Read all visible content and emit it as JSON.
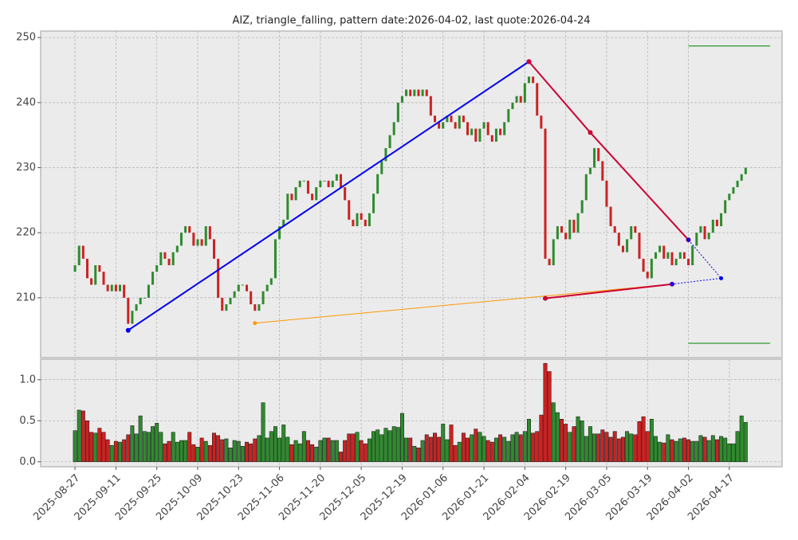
{
  "chart_data": [
    {
      "type": "candlestick",
      "title": "AIZ, triangle_falling, pattern date:2026-04-02, last quote:2026-04-24",
      "up_color": "#2e8b2e",
      "down_color": "#cc2222",
      "grid": true,
      "xlim": [
        -8.4,
        172.9
      ],
      "xticks": [
        0,
        10,
        20,
        30,
        40,
        50,
        60,
        70,
        80,
        90,
        100,
        110,
        120,
        130,
        140,
        150
      ],
      "ylim": [
        200.8,
        251
      ],
      "yticks": [
        210,
        220,
        230,
        240,
        250
      ],
      "open": [
        214,
        215,
        218,
        216,
        213,
        212,
        215,
        214,
        212,
        211,
        212,
        211,
        212,
        210,
        206,
        208,
        209,
        210,
        210,
        212,
        214,
        215,
        217,
        216,
        215,
        217,
        218,
        220,
        221,
        220,
        218,
        219,
        218,
        221,
        219,
        216,
        210,
        208,
        209,
        210,
        211,
        212,
        212,
        211,
        209,
        208,
        209,
        211,
        212,
        213,
        219,
        221,
        222,
        226,
        225,
        227,
        228,
        228,
        226,
        225,
        227,
        228,
        228,
        227,
        228,
        229,
        227,
        225,
        222,
        221,
        223,
        222,
        221,
        223,
        226,
        229,
        231,
        233,
        235,
        237,
        240,
        241,
        242,
        241,
        242,
        241,
        242,
        241,
        238,
        237,
        236,
        237,
        238,
        237,
        236,
        238,
        237,
        235,
        236,
        234,
        236,
        237,
        235,
        234,
        236,
        235,
        237,
        239,
        240,
        241,
        240,
        243,
        244,
        243,
        238,
        236,
        216,
        215,
        219,
        221,
        220,
        219,
        222,
        220,
        223,
        225,
        229,
        230,
        233,
        231,
        228,
        224,
        221,
        220,
        218,
        217,
        219,
        221,
        220,
        216,
        214,
        213,
        216,
        217,
        218,
        216,
        217,
        215,
        216,
        217,
        216,
        215,
        218,
        220,
        221,
        219,
        220,
        222,
        221,
        223,
        225,
        226,
        227,
        228,
        229
      ],
      "close": [
        215,
        218,
        216,
        213,
        212,
        215,
        214,
        212,
        211,
        212,
        211,
        212,
        210,
        206,
        208,
        209,
        210,
        210,
        212,
        214,
        215,
        217,
        216,
        215,
        217,
        218,
        220,
        221,
        220,
        218,
        219,
        218,
        221,
        219,
        216,
        210,
        208,
        209,
        210,
        211,
        212,
        212,
        211,
        209,
        208,
        209,
        211,
        212,
        213,
        219,
        221,
        222,
        226,
        225,
        227,
        228,
        228,
        226,
        225,
        227,
        228,
        228,
        227,
        228,
        229,
        227,
        225,
        222,
        221,
        223,
        222,
        221,
        223,
        226,
        229,
        231,
        233,
        235,
        237,
        240,
        241,
        242,
        241,
        242,
        241,
        242,
        241,
        238,
        237,
        236,
        237,
        238,
        237,
        236,
        238,
        237,
        235,
        236,
        234,
        236,
        237,
        235,
        234,
        236,
        235,
        237,
        239,
        240,
        241,
        240,
        243,
        244,
        243,
        238,
        236,
        216,
        215,
        219,
        221,
        220,
        219,
        222,
        220,
        223,
        225,
        229,
        230,
        233,
        231,
        228,
        224,
        221,
        220,
        218,
        217,
        219,
        221,
        220,
        216,
        214,
        213,
        216,
        217,
        218,
        216,
        217,
        215,
        216,
        217,
        216,
        215,
        218,
        220,
        221,
        219,
        220,
        222,
        221,
        223,
        225,
        226,
        227,
        228,
        229,
        230
      ],
      "overlays": [
        {
          "color": "#ff9900",
          "style": "solid",
          "width": 1,
          "markers": true,
          "x": [
            44,
            146
          ],
          "y": [
            206.1,
            212.1
          ]
        },
        {
          "color": "#0000ee",
          "style": "solid",
          "width": 2,
          "markers": true,
          "x": [
            13,
            111
          ],
          "y": [
            205,
            246.3
          ]
        },
        {
          "color": "#cc0033",
          "style": "solid",
          "width": 2,
          "markers": true,
          "x": [
            111,
            126,
            150
          ],
          "y": [
            246.3,
            235.4,
            218.9
          ]
        },
        {
          "color": "#cc0033",
          "style": "solid",
          "width": 2,
          "markers": true,
          "x": [
            115,
            146
          ],
          "y": [
            209.9,
            212.1
          ]
        },
        {
          "color": "#0000ee",
          "style": "dotted",
          "width": 1,
          "markers": true,
          "x": [
            150,
            158,
            146
          ],
          "y": [
            218.9,
            213,
            212.1
          ]
        },
        {
          "color": "#008000",
          "style": "solid",
          "width": 1,
          "markers": false,
          "x": [
            150,
            170
          ],
          "y": [
            248.7,
            248.7
          ]
        },
        {
          "color": "#008000",
          "style": "solid",
          "width": 1,
          "markers": false,
          "x": [
            150,
            170
          ],
          "y": [
            203,
            203
          ]
        }
      ]
    },
    {
      "type": "bar",
      "grid": true,
      "xlim": [
        -8.4,
        172.9
      ],
      "xticks": [
        {
          "value": 0,
          "label": "2025-08-27"
        },
        {
          "value": 10,
          "label": "2025-09-11"
        },
        {
          "value": 20,
          "label": "2025-09-25"
        },
        {
          "value": 30,
          "label": "2025-10-09"
        },
        {
          "value": 40,
          "label": "2025-10-23"
        },
        {
          "value": 50,
          "label": "2025-11-06"
        },
        {
          "value": 60,
          "label": "2025-11-20"
        },
        {
          "value": 70,
          "label": "2025-12-05"
        },
        {
          "value": 80,
          "label": "2025-12-19"
        },
        {
          "value": 90,
          "label": "2026-01-06"
        },
        {
          "value": 100,
          "label": "2026-01-21"
        },
        {
          "value": 110,
          "label": "2026-02-04"
        },
        {
          "value": 120,
          "label": "2026-02-19"
        },
        {
          "value": 130,
          "label": "2026-03-05"
        },
        {
          "value": 140,
          "label": "2026-03-19"
        },
        {
          "value": 150,
          "label": "2026-04-02"
        },
        {
          "value": 160,
          "label": "2026-04-17"
        }
      ],
      "ylim": [
        -0.06,
        1.25
      ],
      "yticks": [
        {
          "value": 0,
          "label": "0.0"
        },
        0.5,
        {
          "value": 1,
          "label": "1.0"
        }
      ],
      "values": [
        0.38,
        0.63,
        0.62,
        0.5,
        0.36,
        0.35,
        0.41,
        0.36,
        0.27,
        0.2,
        0.25,
        0.24,
        0.27,
        0.33,
        0.44,
        0.34,
        0.56,
        0.37,
        0.36,
        0.43,
        0.47,
        0.36,
        0.22,
        0.25,
        0.36,
        0.24,
        0.26,
        0.26,
        0.36,
        0.21,
        0.18,
        0.29,
        0.25,
        0.2,
        0.35,
        0.32,
        0.27,
        0.28,
        0.17,
        0.26,
        0.25,
        0.19,
        0.24,
        0.22,
        0.28,
        0.32,
        0.72,
        0.29,
        0.37,
        0.43,
        0.29,
        0.45,
        0.3,
        0.21,
        0.26,
        0.22,
        0.37,
        0.26,
        0.21,
        0.18,
        0.26,
        0.29,
        0.29,
        0.26,
        0.26,
        0.12,
        0.26,
        0.34,
        0.34,
        0.36,
        0.26,
        0.22,
        0.28,
        0.37,
        0.39,
        0.33,
        0.41,
        0.38,
        0.43,
        0.42,
        0.59,
        0.29,
        0.29,
        0.19,
        0.17,
        0.26,
        0.33,
        0.3,
        0.35,
        0.3,
        0.46,
        0.27,
        0.45,
        0.2,
        0.24,
        0.35,
        0.29,
        0.33,
        0.4,
        0.36,
        0.31,
        0.26,
        0.24,
        0.29,
        0.33,
        0.3,
        0.25,
        0.33,
        0.36,
        0.33,
        0.37,
        0.52,
        0.35,
        0.37,
        0.57,
        1.2,
        1.1,
        0.72,
        0.6,
        0.52,
        0.46,
        0.36,
        0.43,
        0.55,
        0.5,
        0.31,
        0.43,
        0.34,
        0.34,
        0.39,
        0.36,
        0.3,
        0.37,
        0.28,
        0.3,
        0.37,
        0.34,
        0.33,
        0.49,
        0.55,
        0.37,
        0.52,
        0.31,
        0.24,
        0.23,
        0.33,
        0.27,
        0.25,
        0.28,
        0.29,
        0.27,
        0.25,
        0.25,
        0.32,
        0.3,
        0.26,
        0.32,
        0.27,
        0.31,
        0.29,
        0.22,
        0.22,
        0.37,
        0.56,
        0.48
      ]
    }
  ]
}
